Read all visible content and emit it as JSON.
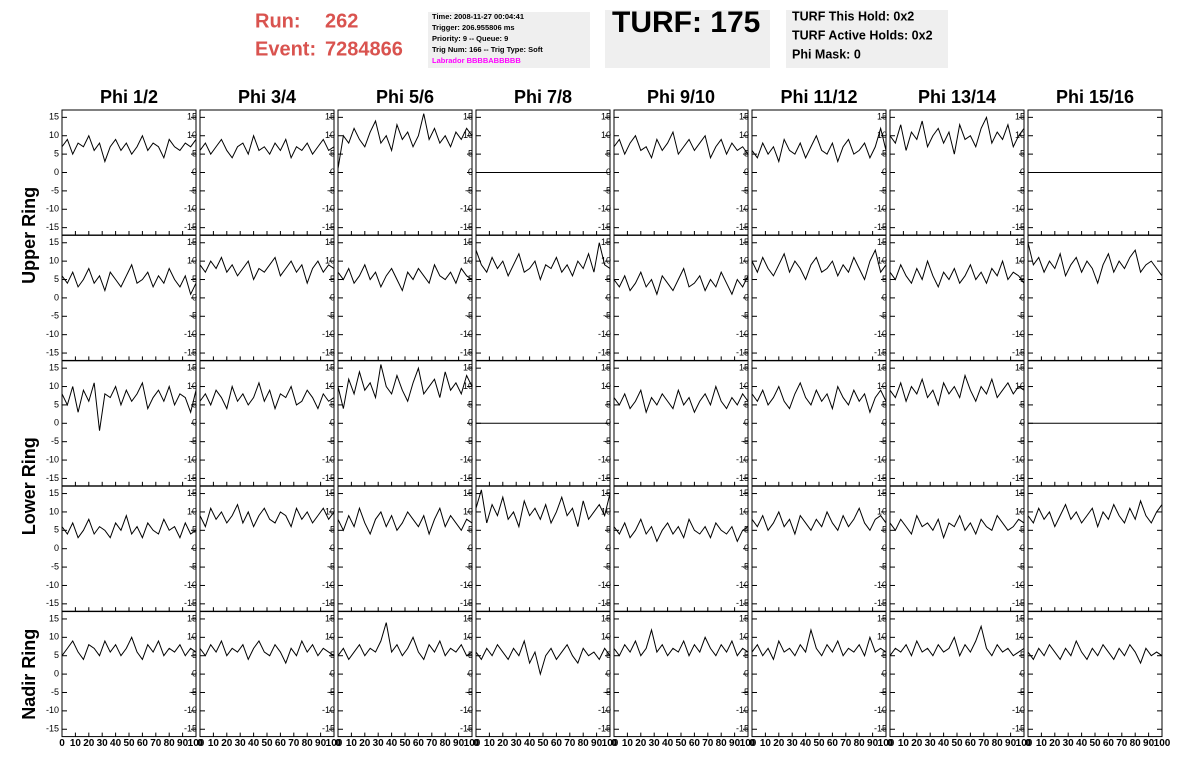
{
  "chart_data": {
    "type": "line",
    "header": {
      "run_label": "Run:",
      "run": "262",
      "event_label": "Event:",
      "event": "7284866",
      "info": [
        "Time: 2008-11-27 00:04:41",
        "Trigger: 206.955806 ms",
        "Priority: 9 -- Queue: 9",
        "Trig Num: 166 -- Trig Type: Soft"
      ],
      "labrador": "Labrador BBBBABBBBB",
      "turf": "TURF: 175",
      "turf_info": [
        "TURF This Hold: 0x2",
        "TURF Active Holds: 0x2",
        "Phi Mask: 0"
      ]
    },
    "columns": [
      "Phi 1/2",
      "Phi 3/4",
      "Phi 5/6",
      "Phi 7/8",
      "Phi 9/10",
      "Phi 11/12",
      "Phi 13/14",
      "Phi 15/16"
    ],
    "row_labels": [
      "Upper Ring",
      "Lower Ring",
      "Nadir Ring"
    ],
    "color": "#000000",
    "xlim": [
      0,
      100
    ],
    "xticks": [
      0,
      10,
      20,
      30,
      40,
      50,
      60,
      70,
      80,
      90,
      100
    ],
    "ylim": [
      -17,
      17
    ],
    "yticks": [
      -15,
      -10,
      -5,
      0,
      5,
      10,
      15
    ],
    "x": [
      0,
      4,
      8,
      12,
      16,
      20,
      24,
      28,
      32,
      36,
      40,
      44,
      48,
      52,
      56,
      60,
      64,
      68,
      72,
      76,
      80,
      84,
      88,
      92,
      96,
      100
    ],
    "values": [
      [
        [
          7,
          9,
          5,
          8,
          7,
          10,
          6,
          8,
          3,
          7,
          9,
          6,
          8,
          5,
          7,
          10,
          6,
          8,
          7,
          4,
          9,
          7,
          6,
          8,
          7,
          9
        ],
        [
          6,
          8,
          5,
          7,
          9,
          6,
          4,
          7,
          8,
          5,
          10,
          6,
          7,
          5,
          8,
          6,
          9,
          4,
          7,
          6,
          8,
          5,
          7,
          9,
          6,
          7
        ],
        [
          1,
          10,
          8,
          12,
          9,
          7,
          11,
          14,
          8,
          10,
          6,
          13,
          9,
          11,
          7,
          10,
          16,
          9,
          12,
          8,
          10,
          7,
          11,
          9,
          12,
          10
        ],
        [
          0,
          0,
          0,
          0,
          0,
          0,
          0,
          0,
          0,
          0,
          0,
          0,
          0,
          0,
          0,
          0,
          0,
          0,
          0,
          0,
          0,
          0,
          0,
          0,
          0,
          0
        ],
        [
          7,
          9,
          5,
          8,
          10,
          6,
          7,
          4,
          9,
          6,
          8,
          11,
          5,
          7,
          9,
          6,
          8,
          10,
          4,
          7,
          9,
          5,
          8,
          6,
          7,
          5
        ],
        [
          6,
          4,
          8,
          5,
          7,
          3,
          9,
          6,
          5,
          8,
          4,
          7,
          10,
          6,
          5,
          8,
          3,
          7,
          9,
          5,
          6,
          8,
          4,
          7,
          12,
          6
        ],
        [
          10,
          8,
          13,
          6,
          11,
          9,
          14,
          7,
          10,
          12,
          8,
          11,
          5,
          13,
          9,
          10,
          7,
          12,
          15,
          8,
          11,
          9,
          13,
          7,
          10,
          12
        ],
        [
          0,
          0,
          0,
          0,
          0,
          0,
          0,
          0,
          0,
          0,
          0,
          0,
          0,
          0,
          0,
          0,
          0,
          0,
          0,
          0,
          0,
          0,
          0,
          0,
          0,
          0
        ]
      ],
      [
        [
          6,
          4,
          7,
          3,
          5,
          8,
          4,
          6,
          2,
          7,
          5,
          3,
          6,
          9,
          4,
          5,
          7,
          3,
          6,
          4,
          8,
          5,
          3,
          6,
          1,
          4
        ],
        [
          9,
          7,
          10,
          8,
          11,
          7,
          9,
          6,
          8,
          10,
          5,
          8,
          7,
          9,
          11,
          6,
          8,
          10,
          7,
          9,
          4,
          8,
          10,
          7,
          9,
          8
        ],
        [
          7,
          5,
          8,
          4,
          6,
          9,
          5,
          7,
          3,
          6,
          8,
          5,
          2,
          7,
          5,
          8,
          6,
          4,
          9,
          6,
          5,
          7,
          4,
          8,
          6,
          5
        ],
        [
          13,
          9,
          7,
          11,
          8,
          10,
          6,
          9,
          12,
          7,
          8,
          10,
          5,
          9,
          8,
          11,
          7,
          9,
          6,
          10,
          8,
          12,
          7,
          15,
          9,
          8
        ],
        [
          5,
          3,
          6,
          2,
          4,
          7,
          3,
          5,
          1,
          6,
          4,
          2,
          5,
          8,
          3,
          4,
          6,
          2,
          5,
          3,
          7,
          4,
          1,
          5,
          3,
          6
        ],
        [
          10,
          7,
          11,
          8,
          6,
          9,
          12,
          7,
          10,
          8,
          5,
          9,
          11,
          7,
          8,
          10,
          6,
          9,
          7,
          11,
          8,
          5,
          10,
          13,
          7,
          9
        ],
        [
          7,
          5,
          9,
          6,
          4,
          8,
          5,
          10,
          6,
          3,
          7,
          5,
          8,
          4,
          6,
          9,
          5,
          7,
          4,
          8,
          6,
          10,
          5,
          7,
          6,
          4
        ],
        [
          15,
          9,
          11,
          7,
          10,
          8,
          12,
          6,
          9,
          11,
          7,
          10,
          8,
          4,
          9,
          12,
          7,
          10,
          8,
          11,
          13,
          7,
          9,
          10,
          8,
          6
        ]
      ],
      [
        [
          8,
          5,
          10,
          3,
          9,
          6,
          11,
          -2,
          8,
          7,
          10,
          5,
          9,
          6,
          8,
          11,
          4,
          7,
          9,
          6,
          10,
          5,
          8,
          7,
          3,
          9
        ],
        [
          6,
          8,
          5,
          9,
          7,
          4,
          10,
          6,
          8,
          5,
          7,
          11,
          6,
          9,
          4,
          8,
          7,
          10,
          5,
          6,
          9,
          7,
          4,
          8,
          6,
          7
        ],
        [
          10,
          4,
          12,
          8,
          14,
          9,
          11,
          7,
          16,
          10,
          8,
          13,
          9,
          6,
          11,
          15,
          8,
          10,
          12,
          7,
          14,
          9,
          11,
          8,
          13,
          10
        ],
        [
          0,
          0,
          0,
          0,
          0,
          0,
          0,
          0,
          0,
          0,
          0,
          0,
          0,
          0,
          0,
          0,
          0,
          0,
          0,
          0,
          0,
          0,
          0,
          0,
          0,
          0
        ],
        [
          7,
          5,
          8,
          4,
          6,
          9,
          3,
          7,
          5,
          8,
          6,
          4,
          9,
          5,
          7,
          3,
          6,
          8,
          5,
          10,
          6,
          4,
          7,
          5,
          8,
          6
        ],
        [
          8,
          6,
          9,
          5,
          7,
          10,
          6,
          4,
          8,
          11,
          7,
          5,
          9,
          6,
          8,
          4,
          10,
          7,
          5,
          9,
          6,
          8,
          3,
          7,
          9,
          6
        ],
        [
          9,
          7,
          11,
          6,
          10,
          8,
          12,
          7,
          9,
          5,
          11,
          8,
          10,
          7,
          13,
          9,
          6,
          10,
          8,
          12,
          7,
          9,
          11,
          8,
          10,
          9
        ],
        [
          0,
          0,
          0,
          0,
          0,
          0,
          0,
          0,
          0,
          0,
          0,
          0,
          0,
          0,
          0,
          0,
          0,
          0,
          0,
          0,
          0,
          0,
          0,
          0,
          0,
          0
        ]
      ],
      [
        [
          6,
          4,
          7,
          3,
          5,
          8,
          4,
          6,
          5,
          3,
          7,
          5,
          9,
          4,
          6,
          3,
          7,
          5,
          4,
          8,
          5,
          6,
          3,
          7,
          4,
          5
        ],
        [
          9,
          6,
          11,
          8,
          10,
          7,
          9,
          12,
          7,
          10,
          6,
          9,
          11,
          8,
          7,
          10,
          9,
          6,
          11,
          8,
          10,
          7,
          9,
          11,
          8,
          10
        ],
        [
          8,
          5,
          9,
          6,
          11,
          7,
          4,
          8,
          10,
          6,
          9,
          5,
          7,
          10,
          8,
          6,
          9,
          4,
          8,
          11,
          6,
          9,
          7,
          5,
          8,
          7
        ],
        [
          11,
          16,
          7,
          12,
          9,
          14,
          8,
          10,
          6,
          13,
          9,
          11,
          8,
          12,
          7,
          10,
          14,
          9,
          11,
          6,
          13,
          8,
          10,
          12,
          9,
          15
        ],
        [
          6,
          4,
          7,
          3,
          5,
          8,
          4,
          6,
          2,
          5,
          7,
          4,
          6,
          3,
          8,
          5,
          4,
          6,
          3,
          7,
          5,
          4,
          6,
          2,
          5,
          6
        ],
        [
          8,
          6,
          9,
          5,
          7,
          10,
          6,
          8,
          4,
          9,
          7,
          5,
          8,
          6,
          10,
          7,
          5,
          9,
          6,
          8,
          11,
          7,
          5,
          8,
          9,
          7
        ],
        [
          7,
          5,
          8,
          6,
          4,
          9,
          6,
          7,
          5,
          8,
          3,
          7,
          6,
          9,
          5,
          7,
          4,
          8,
          6,
          5,
          9,
          7,
          5,
          6,
          8,
          7
        ],
        [
          9,
          7,
          11,
          8,
          10,
          6,
          9,
          12,
          8,
          10,
          7,
          9,
          11,
          6,
          10,
          8,
          12,
          9,
          7,
          11,
          8,
          13,
          9,
          7,
          10,
          12
        ]
      ],
      [
        [
          5,
          7,
          9,
          6,
          4,
          8,
          7,
          5,
          9,
          6,
          8,
          5,
          7,
          10,
          6,
          4,
          8,
          6,
          9,
          5,
          7,
          6,
          8,
          5,
          7,
          6
        ],
        [
          7,
          5,
          8,
          6,
          9,
          5,
          7,
          6,
          8,
          4,
          7,
          9,
          6,
          5,
          8,
          6,
          3,
          7,
          5,
          9,
          6,
          8,
          5,
          7,
          6,
          5
        ],
        [
          5,
          7,
          4,
          6,
          8,
          5,
          7,
          6,
          9,
          14,
          6,
          8,
          5,
          7,
          10,
          6,
          4,
          8,
          6,
          9,
          5,
          7,
          6,
          8,
          5,
          6
        ],
        [
          6,
          4,
          7,
          5,
          8,
          6,
          4,
          7,
          5,
          9,
          3,
          6,
          0,
          5,
          7,
          4,
          6,
          8,
          5,
          3,
          7,
          5,
          6,
          4,
          7,
          5
        ],
        [
          7,
          5,
          8,
          6,
          9,
          5,
          7,
          12,
          6,
          8,
          5,
          7,
          6,
          9,
          5,
          8,
          6,
          10,
          7,
          5,
          8,
          6,
          9,
          5,
          7,
          6
        ],
        [
          6,
          8,
          5,
          7,
          4,
          9,
          6,
          7,
          5,
          8,
          6,
          12,
          7,
          5,
          8,
          6,
          9,
          5,
          7,
          6,
          8,
          5,
          10,
          6,
          7,
          6
        ],
        [
          5,
          7,
          6,
          8,
          5,
          9,
          6,
          7,
          5,
          8,
          6,
          7,
          10,
          5,
          8,
          6,
          9,
          13,
          7,
          5,
          8,
          6,
          7,
          5,
          6,
          7
        ],
        [
          6,
          4,
          7,
          5,
          8,
          6,
          4,
          7,
          5,
          9,
          6,
          4,
          7,
          5,
          8,
          6,
          4,
          7,
          5,
          8,
          6,
          3,
          7,
          5,
          6,
          5
        ]
      ]
    ]
  }
}
